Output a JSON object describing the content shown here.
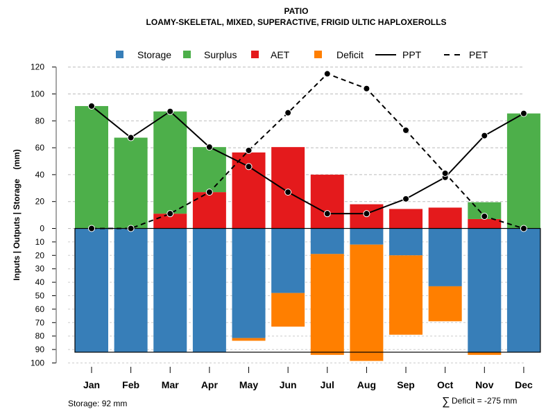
{
  "chart_data": {
    "type": "bar",
    "title": "PATIO",
    "subtitle": "LOAMY-SKELETAL, MIXED, SUPERACTIVE, FRIGID ULTIC HAPLOXEROLLS",
    "ylabel": "Inputs | Outputs | Storage    (mm)",
    "categories": [
      "Jan",
      "Feb",
      "Mar",
      "Apr",
      "May",
      "Jun",
      "Jul",
      "Aug",
      "Sep",
      "Oct",
      "Nov",
      "Dec"
    ],
    "upper_ylim": [
      0,
      120
    ],
    "upper_ticks": [
      "0",
      "20",
      "40",
      "60",
      "80",
      "100",
      "120"
    ],
    "lower_ylim": [
      0,
      100
    ],
    "lower_ticks": [
      "10",
      "20",
      "30",
      "40",
      "50",
      "60",
      "70",
      "80",
      "90",
      "100"
    ],
    "legend": {
      "position": "top",
      "items": [
        {
          "label": "Storage",
          "type": "box",
          "color": "#377EB8"
        },
        {
          "label": "Surplus",
          "type": "box",
          "color": "#4DAF4A"
        },
        {
          "label": "AET",
          "type": "box",
          "color": "#E41A1C"
        },
        {
          "label": "Deficit",
          "type": "box",
          "color": "#FF7F00"
        },
        {
          "label": "PPT",
          "type": "solid"
        },
        {
          "label": "PET",
          "type": "dashed"
        }
      ]
    },
    "series": [
      {
        "name": "PPT",
        "values": [
          91,
          67.5,
          87,
          60.5,
          46,
          27,
          11,
          11,
          22,
          38,
          69,
          85.5
        ]
      },
      {
        "name": "PET",
        "values": [
          0,
          0,
          11,
          27,
          58,
          86,
          115,
          104,
          73,
          41,
          9,
          0
        ]
      },
      {
        "name": "AET",
        "values": [
          0,
          0,
          11,
          27,
          56.5,
          60.5,
          40,
          18,
          14.5,
          15.5,
          7,
          0
        ]
      },
      {
        "name": "Surplus",
        "values": [
          91,
          67.5,
          76,
          33.5,
          0,
          0,
          0,
          0,
          0,
          0,
          12.5,
          85.5
        ]
      },
      {
        "name": "Storage",
        "values": [
          92,
          92,
          92,
          92,
          81.5,
          48,
          19,
          12,
          20,
          43,
          92,
          92
        ]
      },
      {
        "name": "Deficit",
        "values": [
          0,
          0,
          0,
          0,
          2,
          25,
          75,
          86.5,
          59,
          26,
          2,
          0
        ]
      }
    ],
    "storage_capacity": 92,
    "colors": {
      "storage": "#377EB8",
      "surplus": "#4DAF4A",
      "aet": "#E41A1C",
      "deficit": "#FF7F00"
    }
  },
  "notes": {
    "storage": "Storage: 92 mm",
    "deficit": "Deficit = -275 mm",
    "sigma": "∑"
  }
}
